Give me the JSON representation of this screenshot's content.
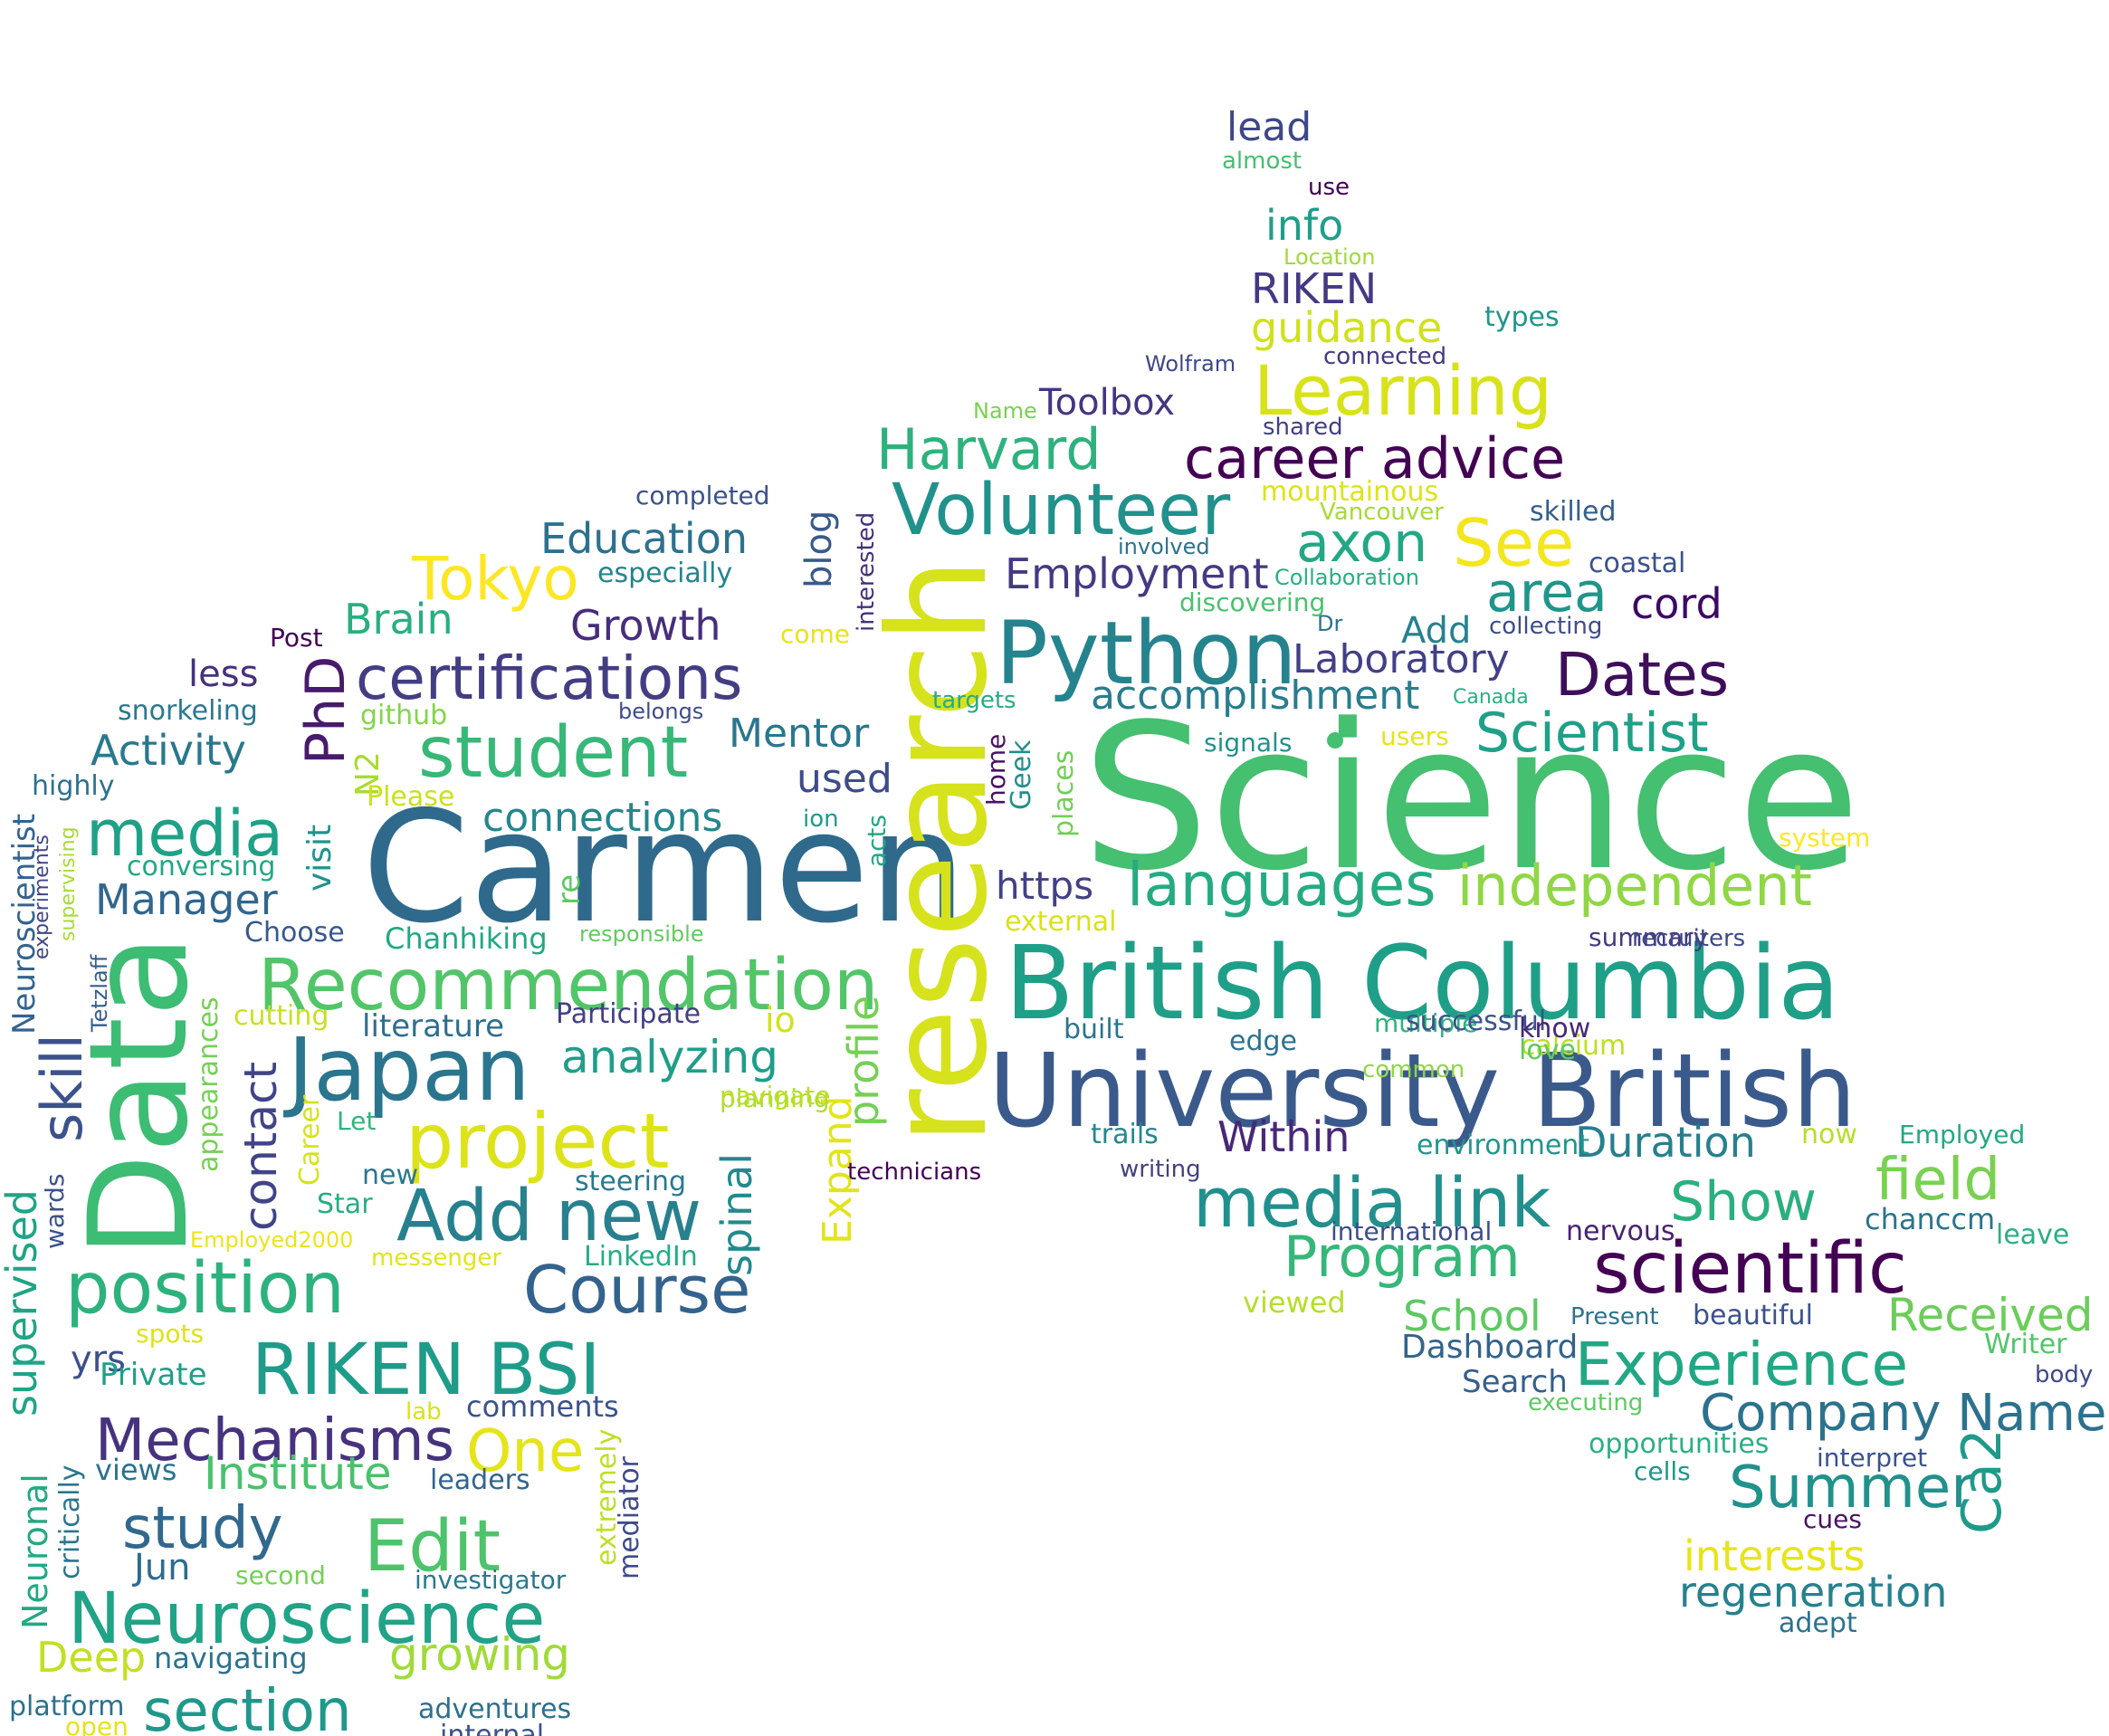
{
  "word_cloud": {
    "words": [
      {
        "text": "Science",
        "color": "#45bf70"
      },
      {
        "text": "Carmen",
        "color": "#2f6a8c"
      },
      {
        "text": "research",
        "color": "#d6e21c"
      },
      {
        "text": "Data",
        "color": "#3dbc74"
      },
      {
        "text": "British Columbia",
        "color": "#1f9f88"
      },
      {
        "text": "University British",
        "color": "#3b5a8c"
      },
      {
        "text": "Python",
        "color": "#25838e"
      },
      {
        "text": "Recommendation",
        "color": "#52c569"
      },
      {
        "text": "Japan",
        "color": "#2b758e"
      },
      {
        "text": "project",
        "color": "#dde318"
      },
      {
        "text": "certifications",
        "color": "#433d84"
      },
      {
        "text": "student",
        "color": "#37b878"
      },
      {
        "text": "position",
        "color": "#2db27d"
      },
      {
        "text": "scientific",
        "color": "#440154"
      },
      {
        "text": "Neuroscience",
        "color": "#20a386"
      },
      {
        "text": "media link",
        "color": "#218f8d"
      },
      {
        "text": "RIKEN BSI",
        "color": "#1e9c89"
      },
      {
        "text": "Add new",
        "color": "#27808e"
      },
      {
        "text": "Experience",
        "color": "#22a785"
      },
      {
        "text": "Volunteer",
        "color": "#21918c"
      },
      {
        "text": "Course",
        "color": "#33638d"
      },
      {
        "text": "languages",
        "color": "#25ab82"
      },
      {
        "text": "independent",
        "color": "#8fd744"
      },
      {
        "text": "Edit",
        "color": "#4ec36b"
      },
      {
        "text": "media",
        "color": "#1fa187"
      },
      {
        "text": "Learning",
        "color": "#d8e219"
      },
      {
        "text": "career advice",
        "color": "#440154"
      },
      {
        "text": "Mechanisms",
        "color": "#46327e"
      },
      {
        "text": "Dates",
        "color": "#3e0e5a"
      },
      {
        "text": "Harvard",
        "color": "#2db27d"
      },
      {
        "text": "Company Name",
        "color": "#2c728e"
      },
      {
        "text": "Scientist",
        "color": "#1fa187"
      },
      {
        "text": "study",
        "color": "#31688e"
      },
      {
        "text": "Program",
        "color": "#35b779"
      },
      {
        "text": "field",
        "color": "#7ad151"
      },
      {
        "text": "Summer",
        "color": "#21918c"
      },
      {
        "text": "Show",
        "color": "#2ab07f"
      },
      {
        "text": "section",
        "color": "#1f988b"
      },
      {
        "text": "Tokyo",
        "color": "#fde725"
      },
      {
        "text": "See",
        "color": "#f4e61e"
      },
      {
        "text": "axon",
        "color": "#22a884"
      },
      {
        "text": "area",
        "color": "#1f958b"
      },
      {
        "text": "Received",
        "color": "#6ccd5a"
      },
      {
        "text": "regeneration",
        "color": "#26818e"
      },
      {
        "text": "One",
        "color": "#e5e419"
      },
      {
        "text": "Institute",
        "color": "#4ac16d"
      },
      {
        "text": "growing",
        "color": "#a0da39"
      },
      {
        "text": "Deep",
        "color": "#c2df23"
      },
      {
        "text": "Ca2",
        "color": "#1f9a8a"
      },
      {
        "text": "Employment",
        "color": "#443a83"
      },
      {
        "text": "Laboratory",
        "color": "#424086"
      },
      {
        "text": "accomplishment",
        "color": "#287d8e"
      },
      {
        "text": "analyzing",
        "color": "#1f9e89"
      },
      {
        "text": "Education",
        "color": "#2d718e"
      },
      {
        "text": "Growth",
        "color": "#472d7b"
      },
      {
        "text": "Brain",
        "color": "#29af7f"
      },
      {
        "text": "Activity",
        "color": "#2a788e"
      },
      {
        "text": "Manager",
        "color": "#31668e"
      },
      {
        "text": "skill",
        "color": "#3b528b"
      },
      {
        "text": "PhD",
        "color": "#481a6c"
      },
      {
        "text": "contact",
        "color": "#414487"
      },
      {
        "text": "spinal",
        "color": "#23898e"
      },
      {
        "text": "profile",
        "color": "#75d054"
      },
      {
        "text": "Expand",
        "color": "#e2e418"
      },
      {
        "text": "Mentor",
        "color": "#2a768e"
      },
      {
        "text": "used",
        "color": "#3e4c8a"
      },
      {
        "text": "connections",
        "color": "#24868e"
      },
      {
        "text": "Duration",
        "color": "#277f8e"
      },
      {
        "text": "Within",
        "color": "#482878"
      },
      {
        "text": "https",
        "color": "#424186"
      },
      {
        "text": "interests",
        "color": "#e7e419"
      },
      {
        "text": "School",
        "color": "#5ec962"
      },
      {
        "text": "Dashboard",
        "color": "#33638d"
      },
      {
        "text": "Search",
        "color": "#355f8d"
      },
      {
        "text": "cord",
        "color": "#3d0965"
      },
      {
        "text": "Add",
        "color": "#26828e"
      },
      {
        "text": "guidance",
        "color": "#d0e11c"
      },
      {
        "text": "RIKEN",
        "color": "#443983"
      },
      {
        "text": "info",
        "color": "#1f9e89"
      },
      {
        "text": "lead",
        "color": "#3f4788"
      },
      {
        "text": "Toolbox",
        "color": "#453581"
      },
      {
        "text": "blog",
        "color": "#375a8c"
      },
      {
        "text": "less",
        "color": "#46307e"
      },
      {
        "text": "yrs",
        "color": "#3c508b"
      },
      {
        "text": "Jun",
        "color": "#2f6c8e"
      },
      {
        "text": "N2",
        "color": "#a8db34"
      },
      {
        "text": "visit",
        "color": "#20928c"
      },
      {
        "text": "Neuroscientist",
        "color": "#33638d"
      },
      {
        "text": "Neuronal",
        "color": "#22a884"
      },
      {
        "text": "supervised",
        "color": "#20a486"
      },
      {
        "text": "Tetzlaff",
        "color": "#365c8d"
      },
      {
        "text": "Private",
        "color": "#1f9e89"
      },
      {
        "text": "views",
        "color": "#2c728e"
      },
      {
        "text": "comments",
        "color": "#3b528b"
      },
      {
        "text": "leaders",
        "color": "#32648e"
      },
      {
        "text": "mediator",
        "color": "#3e4a89"
      },
      {
        "text": "extremely",
        "color": "#bddf26"
      },
      {
        "text": "Career",
        "color": "#d5e21a"
      },
      {
        "text": "appearances",
        "color": "#75d054"
      },
      {
        "text": "cutting",
        "color": "#c8e020"
      },
      {
        "text": "literature",
        "color": "#2e6e8e"
      },
      {
        "text": "Participate",
        "color": "#433e85"
      },
      {
        "text": "Chanhiking",
        "color": "#22a884"
      },
      {
        "text": "Choose",
        "color": "#38588c"
      },
      {
        "text": "responsible",
        "color": "#62cb5f"
      },
      {
        "text": "planning",
        "color": "#addc30"
      },
      {
        "text": "navigate",
        "color": "#bade28"
      },
      {
        "text": "steering",
        "color": "#2a788e"
      },
      {
        "text": "LinkedIn",
        "color": "#25ac82"
      },
      {
        "text": "messenger",
        "color": "#e1e418"
      },
      {
        "text": "Employed2000",
        "color": "#eae51a"
      },
      {
        "text": "new",
        "color": "#2a788e"
      },
      {
        "text": "Star",
        "color": "#26ad81"
      },
      {
        "text": "Let",
        "color": "#2fb47c"
      },
      {
        "text": "lab",
        "color": "#d8e219"
      },
      {
        "text": "spots",
        "color": "#dde318"
      },
      {
        "text": "second",
        "color": "#74d055"
      },
      {
        "text": "investigator",
        "color": "#2a788e"
      },
      {
        "text": "navigating",
        "color": "#2c728e"
      },
      {
        "text": "platform",
        "color": "#2c718e"
      },
      {
        "text": "open",
        "color": "#e5e419"
      },
      {
        "text": "adventures",
        "color": "#2d708e"
      },
      {
        "text": "internal",
        "color": "#3b528b"
      },
      {
        "text": "critically",
        "color": "#2a768e"
      },
      {
        "text": "wards",
        "color": "#3b528b"
      },
      {
        "text": "supervising",
        "color": "#a8db34"
      },
      {
        "text": "experiments",
        "color": "#404688"
      },
      {
        "text": "highly",
        "color": "#2c718e"
      },
      {
        "text": "snorkeling",
        "color": "#2a788e"
      },
      {
        "text": "github",
        "color": "#84d44b"
      },
      {
        "text": "Please",
        "color": "#cae11f"
      },
      {
        "text": "conversing",
        "color": "#22a785"
      },
      {
        "text": "Post",
        "color": "#440154"
      },
      {
        "text": "especially",
        "color": "#25848e"
      },
      {
        "text": "completed",
        "color": "#3b528b"
      },
      {
        "text": "interested",
        "color": "#46307e"
      },
      {
        "text": "come",
        "color": "#e7e419"
      },
      {
        "text": "belongs",
        "color": "#3e4c8a"
      },
      {
        "text": "targets",
        "color": "#25ab82"
      },
      {
        "text": "home",
        "color": "#471164"
      },
      {
        "text": "Geek",
        "color": "#218e8d"
      },
      {
        "text": "places",
        "color": "#71cf57"
      },
      {
        "text": "ion",
        "color": "#1f9a8a"
      },
      {
        "text": "acts",
        "color": "#22a884"
      },
      {
        "text": "re",
        "color": "#5cc863"
      },
      {
        "text": "io",
        "color": "#d2e21b"
      },
      {
        "text": "technicians",
        "color": "#440154"
      },
      {
        "text": "external",
        "color": "#d8e219"
      },
      {
        "text": "built",
        "color": "#2b758e"
      },
      {
        "text": "trails",
        "color": "#24878e"
      },
      {
        "text": "writing",
        "color": "#424186"
      },
      {
        "text": "environment",
        "color": "#1f968b"
      },
      {
        "text": "edge",
        "color": "#2c728e"
      },
      {
        "text": "multiple",
        "color": "#2db27d"
      },
      {
        "text": "calcium",
        "color": "#bddf26"
      },
      {
        "text": "love",
        "color": "#5ec962"
      },
      {
        "text": "summary",
        "color": "#443a83"
      },
      {
        "text": "successful",
        "color": "#3b528b"
      },
      {
        "text": "know",
        "color": "#482878"
      },
      {
        "text": "recruiters",
        "color": "#3e4989"
      },
      {
        "text": "common",
        "color": "#8fd744"
      },
      {
        "text": "system",
        "color": "#fde725"
      },
      {
        "text": "now",
        "color": "#b8de29"
      },
      {
        "text": "Employed",
        "color": "#22a884"
      },
      {
        "text": "international",
        "color": "#3e4c8a"
      },
      {
        "text": "nervous",
        "color": "#482173"
      },
      {
        "text": "viewed",
        "color": "#b5de2b"
      },
      {
        "text": "Present",
        "color": "#2c728e"
      },
      {
        "text": "beautiful",
        "color": "#3b528b"
      },
      {
        "text": "chanccm",
        "color": "#2b748e"
      },
      {
        "text": "leave",
        "color": "#29af7f"
      },
      {
        "text": "Writer",
        "color": "#52c569"
      },
      {
        "text": "body",
        "color": "#3e4a89"
      },
      {
        "text": "executing",
        "color": "#5ec962"
      },
      {
        "text": "opportunities",
        "color": "#2ab07f"
      },
      {
        "text": "interpret",
        "color": "#3b528b"
      },
      {
        "text": "cells",
        "color": "#1f968b"
      },
      {
        "text": "cues",
        "color": "#471365"
      },
      {
        "text": "adept",
        "color": "#2c728e"
      },
      {
        "text": "signals",
        "color": "#21918c"
      },
      {
        "text": "users",
        "color": "#e5e419"
      },
      {
        "text": "Canada",
        "color": "#2ab07f"
      },
      {
        "text": "collecting",
        "color": "#3e4c8a"
      },
      {
        "text": "Dr",
        "color": "#2c728e"
      },
      {
        "text": "Collaboration",
        "color": "#29af7f"
      },
      {
        "text": "discovering",
        "color": "#4ac16d"
      },
      {
        "text": "involved",
        "color": "#2c728e"
      },
      {
        "text": "Vancouver",
        "color": "#a5db36"
      },
      {
        "text": "mountainous",
        "color": "#dde318"
      },
      {
        "text": "skilled",
        "color": "#355f8d"
      },
      {
        "text": "coastal",
        "color": "#3b528b"
      },
      {
        "text": "shared",
        "color": "#424086"
      },
      {
        "text": "connected",
        "color": "#443983"
      },
      {
        "text": "Wolfram",
        "color": "#3f4788"
      },
      {
        "text": "Name",
        "color": "#7ad151"
      },
      {
        "text": "types",
        "color": "#1f968b"
      },
      {
        "text": "Location",
        "color": "#a0da39"
      },
      {
        "text": "use",
        "color": "#440154"
      },
      {
        "text": "almost",
        "color": "#45bf70"
      }
    ]
  }
}
